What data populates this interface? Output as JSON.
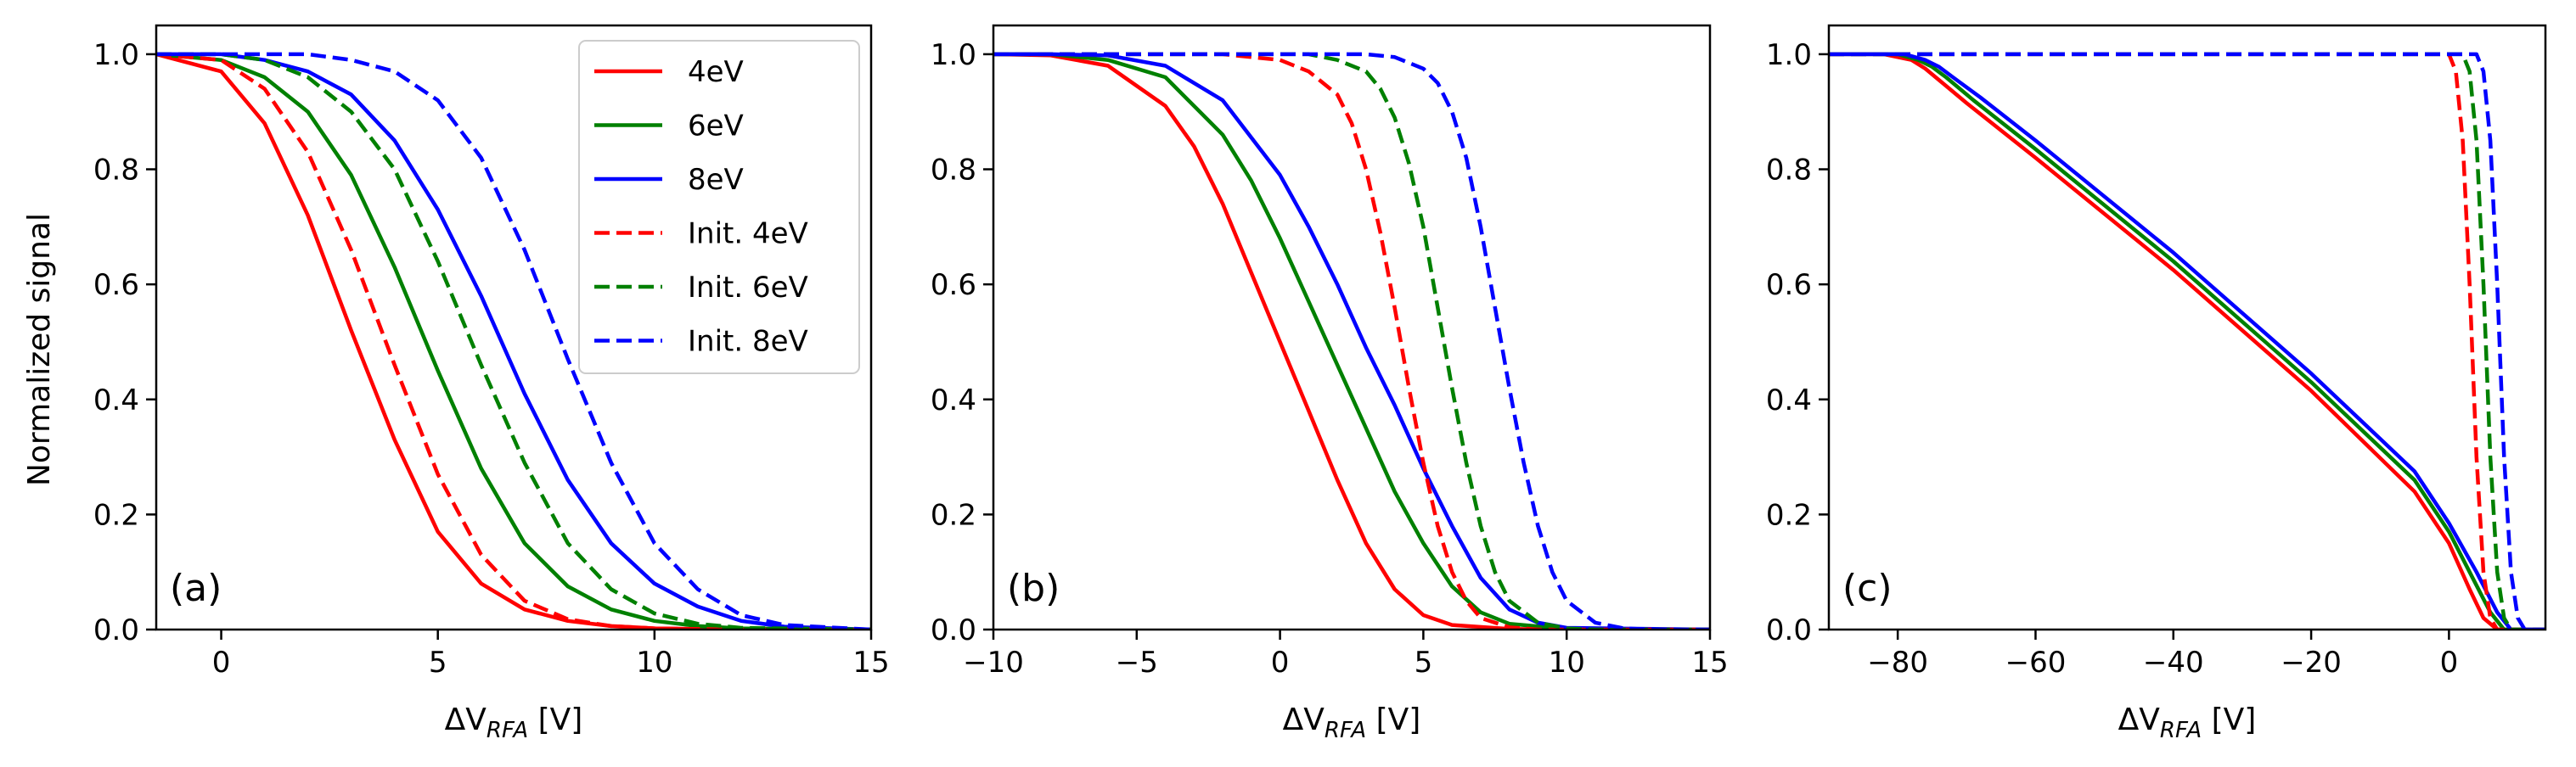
{
  "figure": {
    "shared_ylabel": "Normalized signal"
  },
  "chart_data": [
    {
      "type": "line",
      "panel_label": "(a)",
      "xlabel": {
        "prefix": "ΔV",
        "sub": "RFA",
        "unit": " [V]"
      },
      "ylabel": "Normalized signal",
      "xlim": [
        -1.5,
        15
      ],
      "ylim": [
        0,
        1.05
      ],
      "xticks": [
        0,
        5,
        10,
        15
      ],
      "xtick_labels": [
        "0",
        "5",
        "10",
        "15"
      ],
      "yticks": [
        0.0,
        0.2,
        0.4,
        0.6,
        0.8,
        1.0
      ],
      "ytick_labels": [
        "0.0",
        "0.2",
        "0.4",
        "0.6",
        "0.8",
        "1.0"
      ],
      "legend": {
        "position": "top-right",
        "entries": [
          "4eV",
          "6eV",
          "8eV",
          "Init. 4eV",
          "Init. 6eV",
          "Init. 8eV"
        ]
      },
      "series": [
        {
          "name": "4eV",
          "color": "#ff0000",
          "style": "solid",
          "x": [
            -1.5,
            0,
            1,
            2,
            3,
            4,
            5,
            6,
            7,
            8,
            9,
            10,
            12,
            15
          ],
          "y": [
            1.0,
            0.97,
            0.88,
            0.72,
            0.52,
            0.33,
            0.17,
            0.08,
            0.035,
            0.015,
            0.006,
            0.002,
            0.0,
            0.0
          ]
        },
        {
          "name": "6eV",
          "color": "#008000",
          "style": "solid",
          "x": [
            -1.5,
            0,
            1,
            2,
            3,
            4,
            5,
            6,
            7,
            8,
            9,
            10,
            11,
            12,
            15
          ],
          "y": [
            1.0,
            0.99,
            0.96,
            0.9,
            0.79,
            0.63,
            0.45,
            0.28,
            0.15,
            0.075,
            0.035,
            0.015,
            0.006,
            0.002,
            0.0
          ]
        },
        {
          "name": "8eV",
          "color": "#0000ff",
          "style": "solid",
          "x": [
            -1.5,
            0,
            1,
            2,
            3,
            4,
            5,
            6,
            7,
            8,
            9,
            10,
            11,
            12,
            13,
            15
          ],
          "y": [
            1.0,
            1.0,
            0.99,
            0.97,
            0.93,
            0.85,
            0.73,
            0.58,
            0.41,
            0.26,
            0.15,
            0.08,
            0.04,
            0.015,
            0.005,
            0.0
          ]
        },
        {
          "name": "Init. 4eV",
          "color": "#ff0000",
          "style": "dashed",
          "x": [
            -1.5,
            0,
            1,
            2,
            3,
            4,
            5,
            6,
            7,
            8,
            9,
            10,
            12,
            15
          ],
          "y": [
            1.0,
            0.99,
            0.94,
            0.83,
            0.66,
            0.46,
            0.27,
            0.13,
            0.05,
            0.018,
            0.006,
            0.002,
            0.0,
            0.0
          ]
        },
        {
          "name": "Init. 6eV",
          "color": "#008000",
          "style": "dashed",
          "x": [
            -1.5,
            0,
            1,
            2,
            3,
            4,
            5,
            6,
            7,
            8,
            9,
            10,
            11,
            12,
            15
          ],
          "y": [
            1.0,
            1.0,
            0.99,
            0.96,
            0.9,
            0.8,
            0.64,
            0.46,
            0.29,
            0.15,
            0.07,
            0.028,
            0.01,
            0.003,
            0.0
          ]
        },
        {
          "name": "Init. 8eV",
          "color": "#0000ff",
          "style": "dashed",
          "x": [
            -1.5,
            0,
            1,
            2,
            3,
            4,
            5,
            6,
            7,
            8,
            9,
            10,
            11,
            12,
            13,
            15
          ],
          "y": [
            1.0,
            1.0,
            1.0,
            1.0,
            0.99,
            0.97,
            0.92,
            0.82,
            0.66,
            0.47,
            0.29,
            0.15,
            0.07,
            0.025,
            0.008,
            0.0
          ]
        }
      ]
    },
    {
      "type": "line",
      "panel_label": "(b)",
      "xlabel": {
        "prefix": "ΔV",
        "sub": "RFA",
        "unit": " [V]"
      },
      "xlim": [
        -10,
        15
      ],
      "ylim": [
        0,
        1.05
      ],
      "xticks": [
        -10,
        -5,
        0,
        5,
        10,
        15
      ],
      "xtick_labels": [
        "−10",
        "−5",
        "0",
        "5",
        "10",
        "15"
      ],
      "yticks": [
        0.0,
        0.2,
        0.4,
        0.6,
        0.8,
        1.0
      ],
      "ytick_labels": [
        "0.0",
        "0.2",
        "0.4",
        "0.6",
        "0.8",
        "1.0"
      ],
      "series": [
        {
          "name": "4eV",
          "color": "#ff0000",
          "style": "solid",
          "x": [
            -10,
            -8,
            -6,
            -4,
            -3,
            -2,
            -1,
            0,
            1,
            2,
            3,
            4,
            5,
            6,
            8,
            10,
            15
          ],
          "y": [
            1.0,
            0.998,
            0.98,
            0.91,
            0.84,
            0.74,
            0.62,
            0.5,
            0.38,
            0.26,
            0.15,
            0.07,
            0.025,
            0.008,
            0.001,
            0.0,
            0.0
          ]
        },
        {
          "name": "6eV",
          "color": "#008000",
          "style": "solid",
          "x": [
            -10,
            -8,
            -6,
            -4,
            -2,
            -1,
            0,
            1,
            2,
            3,
            4,
            5,
            6,
            7,
            8,
            10,
            15
          ],
          "y": [
            1.0,
            1.0,
            0.99,
            0.96,
            0.86,
            0.78,
            0.68,
            0.57,
            0.46,
            0.35,
            0.24,
            0.15,
            0.075,
            0.03,
            0.01,
            0.001,
            0.0
          ]
        },
        {
          "name": "8eV",
          "color": "#0000ff",
          "style": "solid",
          "x": [
            -10,
            -8,
            -6,
            -4,
            -2,
            0,
            1,
            2,
            3,
            4,
            5,
            6,
            7,
            8,
            9,
            10,
            15
          ],
          "y": [
            1.0,
            1.0,
            0.998,
            0.98,
            0.92,
            0.79,
            0.7,
            0.6,
            0.49,
            0.39,
            0.28,
            0.18,
            0.09,
            0.035,
            0.012,
            0.003,
            0.0
          ]
        },
        {
          "name": "Init. 4eV",
          "color": "#ff0000",
          "style": "dashed",
          "x": [
            -10,
            -2,
            0,
            1,
            2,
            2.5,
            3,
            3.5,
            4,
            4.5,
            5,
            5.5,
            6,
            6.5,
            7,
            8,
            9,
            15
          ],
          "y": [
            1.0,
            1.0,
            0.99,
            0.97,
            0.93,
            0.88,
            0.8,
            0.69,
            0.56,
            0.42,
            0.29,
            0.18,
            0.1,
            0.05,
            0.02,
            0.004,
            0.0,
            0.0
          ]
        },
        {
          "name": "Init. 6eV",
          "color": "#008000",
          "style": "dashed",
          "x": [
            -10,
            0,
            1,
            2,
            3,
            3.5,
            4,
            4.5,
            5,
            5.5,
            6,
            6.5,
            7,
            7.5,
            8,
            9,
            10,
            11,
            15
          ],
          "y": [
            1.0,
            1.0,
            1.0,
            0.99,
            0.97,
            0.94,
            0.89,
            0.81,
            0.7,
            0.56,
            0.42,
            0.29,
            0.18,
            0.1,
            0.05,
            0.012,
            0.002,
            0.0,
            0.0
          ]
        },
        {
          "name": "Init. 8eV",
          "color": "#0000ff",
          "style": "dashed",
          "x": [
            -10,
            2,
            3,
            4,
            5,
            5.5,
            6,
            6.5,
            7,
            7.5,
            8,
            8.5,
            9,
            9.5,
            10,
            11,
            12,
            13,
            15
          ],
          "y": [
            1.0,
            1.0,
            1.0,
            0.995,
            0.975,
            0.95,
            0.9,
            0.82,
            0.7,
            0.56,
            0.42,
            0.29,
            0.18,
            0.1,
            0.05,
            0.012,
            0.002,
            0.0,
            0.0
          ]
        }
      ]
    },
    {
      "type": "line",
      "panel_label": "(c)",
      "xlabel": {
        "prefix": "ΔV",
        "sub": "RFA",
        "unit": " [V]"
      },
      "xlim": [
        -90,
        14
      ],
      "ylim": [
        0,
        1.05
      ],
      "xticks": [
        -80,
        -60,
        -40,
        -20,
        0
      ],
      "xtick_labels": [
        "−80",
        "−60",
        "−40",
        "−20",
        "0"
      ],
      "yticks": [
        0.0,
        0.2,
        0.4,
        0.6,
        0.8,
        1.0
      ],
      "ytick_labels": [
        "0.0",
        "0.2",
        "0.4",
        "0.6",
        "0.8",
        "1.0"
      ],
      "series": [
        {
          "name": "4eV",
          "color": "#ff0000",
          "style": "solid",
          "x": [
            -90,
            -82,
            -78,
            -76,
            -74,
            -70,
            -60,
            -40,
            -20,
            -5,
            0,
            3,
            5,
            7,
            14
          ],
          "y": [
            1.0,
            1.0,
            0.99,
            0.975,
            0.955,
            0.915,
            0.82,
            0.625,
            0.415,
            0.24,
            0.15,
            0.07,
            0.02,
            0.0,
            0.0
          ]
        },
        {
          "name": "6eV",
          "color": "#008000",
          "style": "solid",
          "x": [
            -90,
            -80,
            -77,
            -75,
            -73,
            -69,
            -60,
            -40,
            -20,
            -5,
            0,
            3,
            6,
            8,
            14
          ],
          "y": [
            1.0,
            1.0,
            0.99,
            0.978,
            0.96,
            0.92,
            0.835,
            0.64,
            0.43,
            0.26,
            0.17,
            0.1,
            0.03,
            0.0,
            0.0
          ]
        },
        {
          "name": "8eV",
          "color": "#0000ff",
          "style": "solid",
          "x": [
            -90,
            -79,
            -76,
            -74,
            -72,
            -68,
            -60,
            -40,
            -20,
            -5,
            0,
            4,
            7,
            9,
            14
          ],
          "y": [
            1.0,
            1.0,
            0.99,
            0.978,
            0.96,
            0.925,
            0.85,
            0.655,
            0.445,
            0.275,
            0.185,
            0.1,
            0.03,
            0.0,
            0.0
          ]
        },
        {
          "name": "Init. 4eV",
          "color": "#ff0000",
          "style": "dashed",
          "x": [
            -90,
            0,
            1,
            2,
            3,
            4,
            5,
            6,
            7,
            14
          ],
          "y": [
            1.0,
            1.0,
            0.97,
            0.85,
            0.6,
            0.3,
            0.1,
            0.02,
            0.0,
            0.0
          ]
        },
        {
          "name": "Init. 6eV",
          "color": "#008000",
          "style": "dashed",
          "x": [
            -90,
            2,
            3,
            4,
            5,
            6,
            7,
            8,
            9,
            14
          ],
          "y": [
            1.0,
            1.0,
            0.97,
            0.85,
            0.6,
            0.3,
            0.1,
            0.02,
            0.0,
            0.0
          ]
        },
        {
          "name": "Init. 8eV",
          "color": "#0000ff",
          "style": "dashed",
          "x": [
            -90,
            4,
            5,
            6,
            7,
            8,
            9,
            10,
            11,
            14
          ],
          "y": [
            1.0,
            1.0,
            0.97,
            0.85,
            0.6,
            0.3,
            0.1,
            0.02,
            0.0,
            0.0
          ]
        }
      ]
    }
  ]
}
